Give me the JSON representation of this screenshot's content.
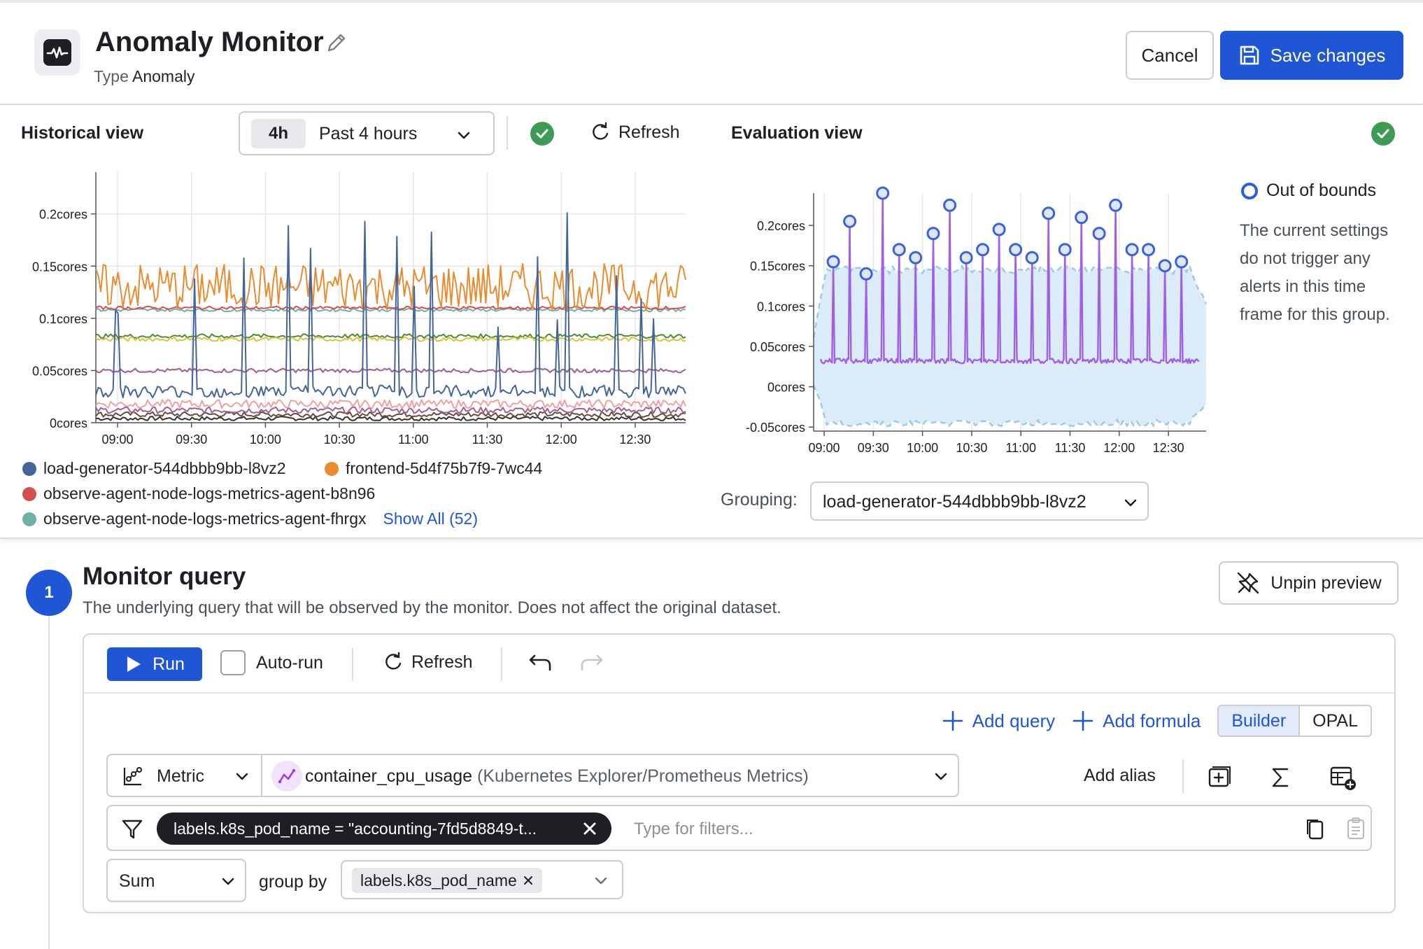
{
  "header": {
    "title": "Anomaly Monitor",
    "type_prefix": "Type",
    "type_value": "Anomaly",
    "cancel_label": "Cancel",
    "save_label": "Save changes"
  },
  "historical": {
    "label": "Historical view",
    "time_chip": "4h",
    "time_label": "Past 4 hours",
    "refresh_label": "Refresh",
    "legend": [
      {
        "name": "load-generator-544dbbb9bb-l8vz2",
        "color": "#44659a"
      },
      {
        "name": "frontend-5d4f75b7f9-7wc44",
        "color": "#e98b2f"
      },
      {
        "name": "observe-agent-node-logs-metrics-agent-b8n96",
        "color": "#d44f4d"
      },
      {
        "name": "observe-agent-node-logs-metrics-agent-fhrgx",
        "color": "#70b0a8"
      }
    ],
    "show_all_label": "Show All (52)"
  },
  "evaluation": {
    "label": "Evaluation view",
    "out_of_bounds_label": "Out of bounds",
    "description": "The current settings do not trigger any alerts in this time frame for this group.",
    "grouping_label": "Grouping:",
    "grouping_value": "load-generator-544dbbb9bb-l8vz2"
  },
  "chart_data": [
    {
      "type": "line",
      "title": "Historical view",
      "x_ticks": [
        "09:00",
        "09:30",
        "10:00",
        "10:30",
        "11:00",
        "11:30",
        "12:00",
        "12:30"
      ],
      "y_ticks": [
        "0cores",
        "0.05cores",
        "0.1cores",
        "0.15cores",
        "0.2cores"
      ],
      "ylim": [
        0,
        0.24
      ],
      "series": [
        {
          "name": "load-generator-544dbbb9bb-l8vz2",
          "color": "#44659a",
          "baseline": 0.03,
          "spike_height": 0.2
        },
        {
          "name": "frontend-5d4f75b7f9-7wc44",
          "color": "#e98b2f",
          "baseline": 0.13,
          "noise": 0.015
        },
        {
          "name": "observe-agent-node-logs-metrics-agent-b8n96",
          "color": "#d44f4d",
          "baseline": 0.11
        },
        {
          "name": "observe-agent-node-logs-metrics-agent-fhrgx",
          "color": "#70b0a8",
          "baseline": 0.108
        }
      ],
      "extra_series_colors": [
        "#4f8a3a",
        "#d7c636",
        "#a05f8f",
        "#f0a0a0",
        "#6b4b3a",
        "#333333"
      ]
    },
    {
      "type": "line",
      "title": "Evaluation view",
      "x_ticks": [
        "09:00",
        "09:30",
        "10:00",
        "10:30",
        "11:00",
        "11:30",
        "12:00",
        "12:30"
      ],
      "y_ticks": [
        "-0.05cores",
        "0cores",
        "0.05cores",
        "0.1cores",
        "0.15cores",
        "0.2cores"
      ],
      "ylim": [
        -0.055,
        0.24
      ],
      "baseline": 0.032,
      "band": {
        "upper": 0.155,
        "lower": -0.05
      },
      "line_color": "#a25ee6",
      "band_color": "#dbecf8",
      "out_of_bounds_points": [
        0.155,
        0.205,
        0.14,
        0.24,
        0.17,
        0.16,
        0.19,
        0.225,
        0.16,
        0.17,
        0.195,
        0.17,
        0.16,
        0.215,
        0.17,
        0.21,
        0.19,
        0.225,
        0.17,
        0.17,
        0.15,
        0.155
      ]
    }
  ],
  "monitor_query": {
    "step": "1",
    "title": "Monitor query",
    "description": "The underlying query that will be observed by the monitor. Does not affect the original dataset.",
    "unpin_label": "Unpin preview",
    "run_label": "Run",
    "autorun_label": "Auto-run",
    "refresh_label": "Refresh",
    "add_query_label": "Add query",
    "add_formula_label": "Add formula",
    "builder_label": "Builder",
    "opal_label": "OPAL",
    "metric_type": "Metric",
    "metric_name": "container_cpu_usage",
    "metric_source": "(Kubernetes Explorer/Prometheus Metrics)",
    "add_alias_label": "Add alias",
    "filter_chip": "labels.k8s_pod_name = \"accounting-7fd5d8849-t...",
    "filter_placeholder": "Type for filters...",
    "aggregation": "Sum",
    "group_by_label": "group by",
    "group_by_value": "labels.k8s_pod_name"
  }
}
